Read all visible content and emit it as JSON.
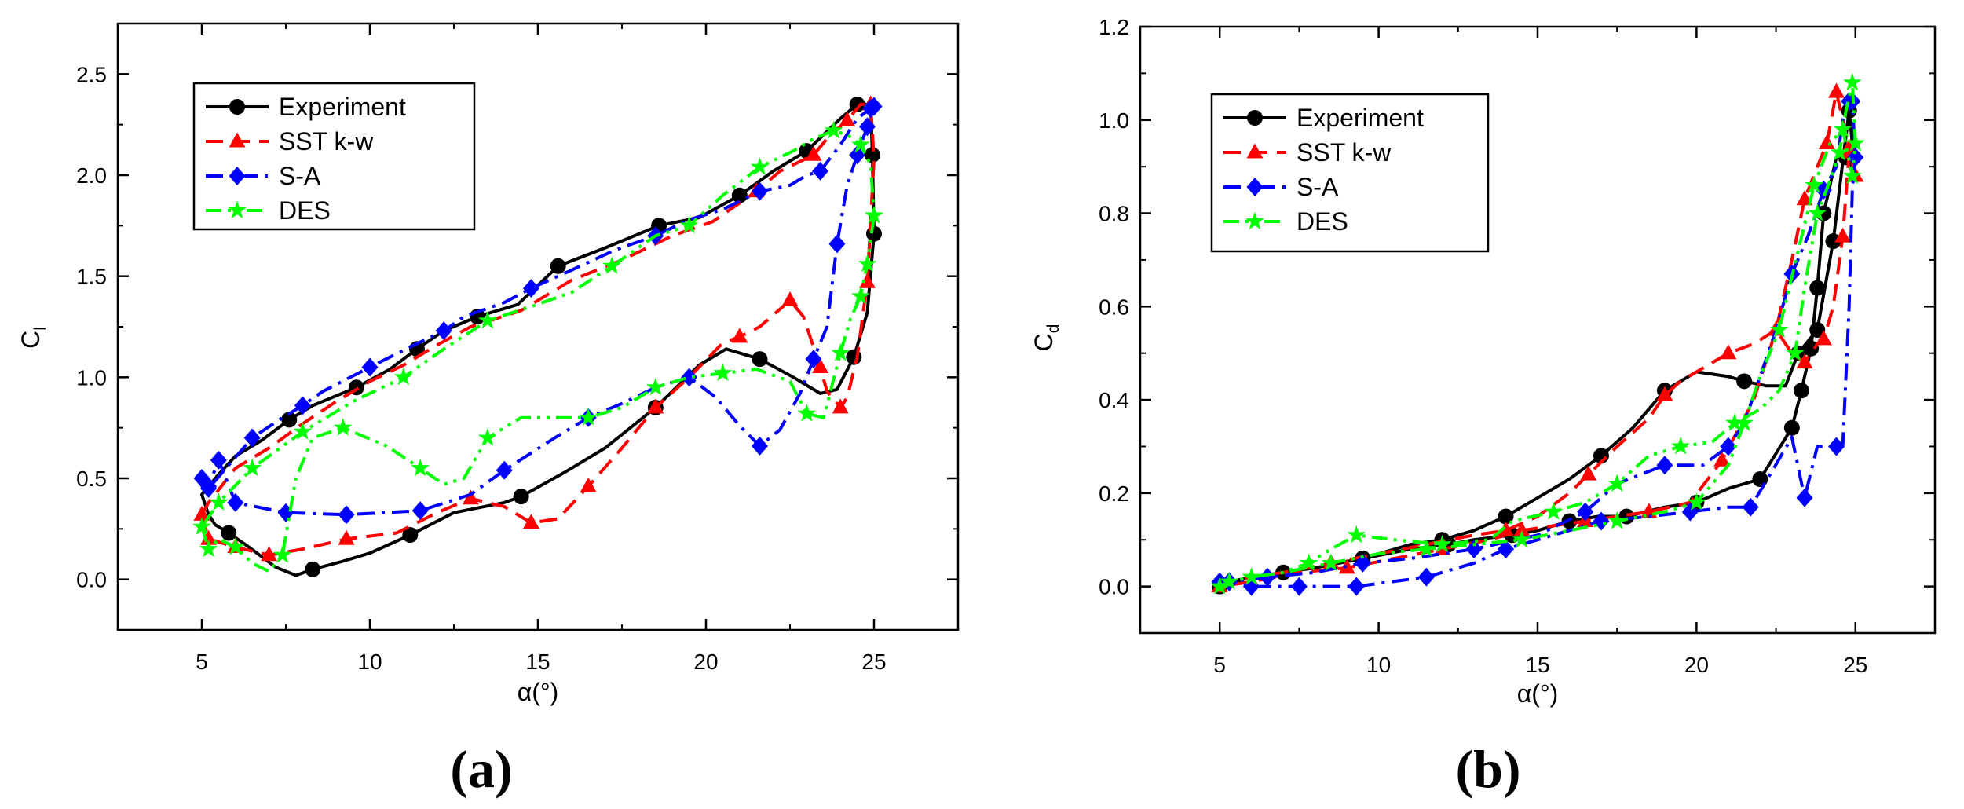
{
  "chart_data": [
    {
      "type": "line",
      "panel_label": "(a)",
      "xlabel": "α(°)",
      "ylabel": "C",
      "ylabel_sub": "l",
      "xlim": [
        2.5,
        27.5
      ],
      "ylim": [
        -0.25,
        2.75
      ],
      "xticks": [
        "5",
        "10",
        "15",
        "20",
        "25"
      ],
      "yticks": [
        "0.0",
        "0.5",
        "1.0",
        "1.5",
        "2.0",
        "2.5"
      ],
      "legend_position": "top-left",
      "series": [
        {
          "name": "Experiment",
          "color": "#000000",
          "dash": "solid",
          "marker": "circle",
          "x": [
            5.0,
            5.2,
            5.4,
            5.8,
            6.4,
            7.2,
            7.8,
            8.3,
            9.2,
            10.0,
            11.2,
            12.5,
            14.0,
            14.5,
            15.8,
            17.0,
            18.5,
            19.8,
            20.6,
            21.6,
            22.6,
            23.4,
            23.9,
            24.4,
            24.8,
            25.0,
            24.95,
            24.9,
            24.5,
            24.0,
            23.5,
            23.0,
            22.0,
            21.0,
            19.8,
            18.6,
            17.0,
            15.6,
            14.4,
            13.2,
            12.2,
            11.4,
            10.6,
            9.6,
            8.3,
            7.6,
            6.8,
            6.0,
            5.5
          ],
          "y": [
            0.42,
            0.32,
            0.27,
            0.23,
            0.16,
            0.06,
            0.02,
            0.05,
            0.09,
            0.13,
            0.22,
            0.33,
            0.38,
            0.41,
            0.53,
            0.65,
            0.85,
            1.06,
            1.14,
            1.09,
            1.0,
            0.92,
            0.94,
            1.1,
            1.32,
            1.71,
            2.1,
            2.35,
            2.35,
            2.28,
            2.2,
            2.12,
            2.02,
            1.9,
            1.79,
            1.75,
            1.64,
            1.55,
            1.36,
            1.3,
            1.23,
            1.14,
            1.04,
            0.95,
            0.86,
            0.79,
            0.69,
            0.61,
            0.52
          ],
          "marker_idx": [
            3,
            7,
            10,
            13,
            16,
            19,
            23,
            25,
            26,
            28,
            31,
            33,
            35,
            37,
            39,
            41,
            43,
            45
          ]
        },
        {
          "name": "SST k-w",
          "color": "#ff0000",
          "dash": "dash",
          "marker": "triangle",
          "x": [
            5.0,
            5.2,
            6.0,
            7.0,
            8.0,
            9.3,
            10.8,
            12.0,
            13.0,
            14.0,
            14.8,
            15.6,
            16.5,
            17.5,
            18.5,
            19.5,
            20.5,
            21.0,
            21.6,
            22.5,
            22.9,
            23.4,
            23.6,
            24.0,
            24.2,
            24.5,
            24.8,
            25.0,
            24.9,
            24.6,
            24.2,
            23.7,
            23.2,
            22.2,
            21.5,
            20.2,
            19.0,
            17.5,
            16.0,
            14.5,
            13.0,
            12.0,
            11.0,
            10.0,
            9.0,
            8.0,
            7.0,
            6.0,
            5.2
          ],
          "y": [
            0.32,
            0.2,
            0.16,
            0.12,
            0.15,
            0.2,
            0.23,
            0.33,
            0.4,
            0.36,
            0.28,
            0.3,
            0.46,
            0.65,
            0.85,
            1.0,
            1.17,
            1.2,
            1.25,
            1.38,
            1.3,
            1.05,
            0.93,
            0.85,
            0.9,
            1.1,
            1.47,
            2.08,
            2.35,
            2.35,
            2.27,
            2.2,
            2.1,
            2.02,
            1.92,
            1.77,
            1.7,
            1.58,
            1.48,
            1.33,
            1.25,
            1.16,
            1.06,
            0.98,
            0.88,
            0.77,
            0.65,
            0.55,
            0.38
          ],
          "marker_idx": [
            0,
            1,
            2,
            3,
            5,
            8,
            10,
            12,
            14,
            17,
            19,
            21,
            23,
            26,
            28,
            30,
            32,
            34
          ]
        },
        {
          "name": "S-A",
          "color": "#0000ff",
          "dash": "dashdot",
          "marker": "diamond",
          "x": [
            5.0,
            5.2,
            5.5,
            6.0,
            7.5,
            9.3,
            11.5,
            13.0,
            14.0,
            15.5,
            16.5,
            17.5,
            18.5,
            19.5,
            20.3,
            21.0,
            21.6,
            22.2,
            22.8,
            23.2,
            23.6,
            23.9,
            24.2,
            24.5,
            24.8,
            25.0,
            24.9,
            24.5,
            24.0,
            23.4,
            23.0,
            22.5,
            21.6,
            20.5,
            19.5,
            18.5,
            17.3,
            16.0,
            14.8,
            14.0,
            12.8,
            12.2,
            11.2,
            10.0,
            8.6,
            8.0,
            7.4,
            6.5,
            5.2
          ],
          "y": [
            0.5,
            0.46,
            0.59,
            0.38,
            0.33,
            0.32,
            0.34,
            0.42,
            0.54,
            0.7,
            0.8,
            0.87,
            0.95,
            1.0,
            0.9,
            0.76,
            0.66,
            0.74,
            0.92,
            1.09,
            1.25,
            1.66,
            1.95,
            2.1,
            2.24,
            2.34,
            2.33,
            2.28,
            2.15,
            2.02,
            2.0,
            1.95,
            1.92,
            1.83,
            1.78,
            1.7,
            1.63,
            1.53,
            1.44,
            1.37,
            1.3,
            1.23,
            1.15,
            1.05,
            0.93,
            0.86,
            0.8,
            0.7,
            0.45
          ],
          "marker_idx": [
            0,
            1,
            2,
            3,
            4,
            5,
            6,
            8,
            10,
            13,
            16,
            19,
            21,
            23,
            24,
            25,
            26,
            29,
            32,
            35,
            38,
            41,
            43,
            45,
            47,
            48
          ]
        },
        {
          "name": "DES",
          "color": "#00ff00",
          "dash": "dashdotdot",
          "marker": "star",
          "x": [
            5.0,
            5.2,
            5.5,
            6.0,
            6.5,
            7.0,
            7.4,
            7.8,
            8.3,
            9.2,
            10.5,
            11.5,
            12.2,
            12.8,
            13.5,
            14.5,
            15.5,
            16.5,
            17.5,
            18.5,
            19.5,
            20.5,
            21.5,
            22.5,
            23.0,
            23.5,
            24.0,
            24.3,
            24.6,
            24.8,
            25.0,
            24.9,
            24.6,
            24.2,
            23.8,
            23.2,
            22.6,
            21.6,
            20.5,
            19.5,
            18.5,
            17.2,
            16.0,
            14.8,
            13.5,
            12.2,
            11.0,
            9.5,
            8.0,
            6.5,
            5.5
          ],
          "y": [
            0.26,
            0.15,
            0.2,
            0.16,
            0.08,
            0.04,
            0.12,
            0.5,
            0.7,
            0.75,
            0.66,
            0.55,
            0.47,
            0.5,
            0.7,
            0.8,
            0.8,
            0.8,
            0.85,
            0.95,
            1.0,
            1.02,
            1.04,
            0.98,
            0.82,
            0.8,
            1.12,
            1.29,
            1.4,
            1.56,
            1.8,
            2.05,
            2.15,
            2.2,
            2.22,
            2.18,
            2.12,
            2.04,
            1.9,
            1.75,
            1.7,
            1.55,
            1.42,
            1.35,
            1.28,
            1.14,
            1.0,
            0.88,
            0.73,
            0.55,
            0.38
          ],
          "marker_idx": [
            0,
            1,
            3,
            6,
            9,
            11,
            14,
            17,
            19,
            21,
            24,
            26,
            28,
            29,
            30,
            32,
            34,
            37,
            39,
            41,
            44,
            46,
            48,
            49,
            50
          ]
        }
      ]
    },
    {
      "type": "line",
      "panel_label": "(b)",
      "xlabel": "α(°)",
      "ylabel": "C",
      "ylabel_sub": "d",
      "xlim": [
        2.5,
        27.5
      ],
      "ylim": [
        -0.1,
        1.2
      ],
      "xticks": [
        "5",
        "10",
        "15",
        "20",
        "25"
      ],
      "yticks": [
        "0.0",
        "0.2",
        "0.4",
        "0.6",
        "0.8",
        "1.0",
        "1.2"
      ],
      "legend_position": "top-left",
      "series": [
        {
          "name": "Experiment",
          "color": "#000000",
          "dash": "solid",
          "marker": "circle",
          "x": [
            5.0,
            5.3,
            6.0,
            7.0,
            8.0,
            9.5,
            11.0,
            12.0,
            13.0,
            14.0,
            15.0,
            16.0,
            17.0,
            18.0,
            19.0,
            20.0,
            21.0,
            21.5,
            22.2,
            22.8,
            23.2,
            23.8,
            24.3,
            24.6,
            24.8,
            24.9,
            24.9,
            24.7,
            24.4,
            24.0,
            23.8,
            23.6,
            23.3,
            23.0,
            22.0,
            21.0,
            20.0,
            19.0,
            17.8,
            16.9,
            16.0,
            15.0,
            14.2,
            13.0,
            12.2,
            11.0,
            9.5,
            8.0,
            7.0,
            6.0
          ],
          "y": [
            0.0,
            0.01,
            0.02,
            0.03,
            0.04,
            0.06,
            0.09,
            0.1,
            0.12,
            0.15,
            0.19,
            0.23,
            0.28,
            0.34,
            0.42,
            0.46,
            0.45,
            0.44,
            0.43,
            0.43,
            0.5,
            0.55,
            0.74,
            0.91,
            1.02,
            0.95,
            0.9,
            0.92,
            0.92,
            0.8,
            0.64,
            0.51,
            0.42,
            0.34,
            0.23,
            0.21,
            0.18,
            0.17,
            0.15,
            0.15,
            0.14,
            0.12,
            0.11,
            0.1,
            0.09,
            0.08,
            0.06,
            0.04,
            0.03,
            0.02
          ],
          "marker_idx": [
            0,
            5,
            7,
            9,
            12,
            14,
            17,
            20,
            21,
            22,
            24,
            27,
            29,
            30,
            31,
            32,
            33,
            34,
            36,
            38,
            40,
            42,
            44,
            46,
            48
          ]
        },
        {
          "name": "SST k-w",
          "color": "#ff0000",
          "dash": "dash",
          "marker": "triangle",
          "x": [
            5.0,
            5.3,
            6.0,
            7.0,
            8.5,
            10.0,
            11.5,
            13.0,
            14.0,
            15.0,
            16.0,
            16.6,
            17.5,
            18.5,
            19.0,
            19.5,
            20.5,
            21.0,
            21.8,
            22.5,
            23.0,
            23.4,
            23.8,
            24.0,
            24.3,
            24.6,
            24.8,
            25.0,
            24.8,
            24.4,
            24.1,
            23.8,
            23.4,
            23.0,
            22.5,
            21.8,
            20.8,
            19.8,
            18.5,
            17.5,
            16.5,
            15.5,
            14.5,
            13.5,
            12.0,
            10.5,
            9.0,
            7.5,
            6.0
          ],
          "y": [
            0.0,
            0.01,
            0.02,
            0.03,
            0.05,
            0.07,
            0.09,
            0.11,
            0.12,
            0.15,
            0.2,
            0.24,
            0.3,
            0.36,
            0.41,
            0.44,
            0.48,
            0.5,
            0.52,
            0.55,
            0.5,
            0.48,
            0.52,
            0.53,
            0.6,
            0.75,
            0.93,
            0.88,
            0.94,
            1.06,
            0.95,
            0.9,
            0.83,
            0.7,
            0.55,
            0.4,
            0.27,
            0.18,
            0.16,
            0.15,
            0.14,
            0.13,
            0.12,
            0.1,
            0.08,
            0.06,
            0.04,
            0.03,
            0.01
          ],
          "marker_idx": [
            0,
            4,
            8,
            11,
            14,
            17,
            19,
            21,
            23,
            25,
            26,
            27,
            28,
            29,
            30,
            32,
            34,
            36,
            38,
            40,
            42,
            44,
            46,
            48
          ]
        },
        {
          "name": "S-A",
          "color": "#0000ff",
          "dash": "dashdot",
          "marker": "diamond",
          "x": [
            5.0,
            5.3,
            6.0,
            7.5,
            9.3,
            11.5,
            13.0,
            14.0,
            15.5,
            17.0,
            18.5,
            19.8,
            21.0,
            21.7,
            22.4,
            23.0,
            23.4,
            23.8,
            24.1,
            24.4,
            24.6,
            24.8,
            24.9,
            25.0,
            24.9,
            24.8,
            24.6,
            24.4,
            24.0,
            23.5,
            23.0,
            22.5,
            22.0,
            21.5,
            21.0,
            20.2,
            19.0,
            17.5,
            16.5,
            15.0,
            13.0,
            11.0,
            9.5,
            8.0,
            6.5,
            5.3
          ],
          "y": [
            0.01,
            0.01,
            0.0,
            0.0,
            0.0,
            0.02,
            0.05,
            0.08,
            0.11,
            0.14,
            0.15,
            0.16,
            0.17,
            0.17,
            0.25,
            0.32,
            0.19,
            0.3,
            0.3,
            0.3,
            0.3,
            0.6,
            0.85,
            0.92,
            1.04,
            1.04,
            1.0,
            0.9,
            0.85,
            0.75,
            0.67,
            0.55,
            0.45,
            0.35,
            0.3,
            0.26,
            0.26,
            0.22,
            0.16,
            0.11,
            0.08,
            0.06,
            0.05,
            0.03,
            0.02,
            0.01
          ],
          "marker_idx": [
            0,
            1,
            2,
            3,
            4,
            5,
            7,
            9,
            11,
            13,
            16,
            19,
            23,
            24,
            25,
            28,
            30,
            34,
            36,
            38,
            40,
            42,
            44,
            45
          ]
        },
        {
          "name": "DES",
          "color": "#00ff00",
          "dash": "dashdotdot",
          "marker": "star",
          "x": [
            5.0,
            5.3,
            6.0,
            7.0,
            7.8,
            8.5,
            9.3,
            10.5,
            12.0,
            13.5,
            14.2,
            15.5,
            16.5,
            17.5,
            18.5,
            19.5,
            20.5,
            21.2,
            22.0,
            22.6,
            23.1,
            23.4,
            23.8,
            24.2,
            24.5,
            24.7,
            24.9,
            25.0,
            24.9,
            24.6,
            24.2,
            23.7,
            23.2,
            22.6,
            22.0,
            21.5,
            21.0,
            20.0,
            19.0,
            17.5,
            16.0,
            14.5,
            13.0,
            11.5,
            10.0,
            8.5,
            7.0,
            6.0,
            5.3
          ],
          "y": [
            0.0,
            0.01,
            0.02,
            0.03,
            0.05,
            0.08,
            0.11,
            0.1,
            0.09,
            0.1,
            0.14,
            0.16,
            0.18,
            0.22,
            0.28,
            0.3,
            0.31,
            0.35,
            0.38,
            0.42,
            0.5,
            0.64,
            0.8,
            0.87,
            0.93,
            1.02,
            1.08,
            0.95,
            0.88,
            0.98,
            0.95,
            0.86,
            0.72,
            0.55,
            0.45,
            0.35,
            0.26,
            0.18,
            0.16,
            0.14,
            0.12,
            0.1,
            0.09,
            0.08,
            0.07,
            0.05,
            0.03,
            0.02,
            0.01
          ],
          "marker_idx": [
            0,
            1,
            2,
            4,
            6,
            8,
            11,
            13,
            15,
            17,
            20,
            22,
            24,
            26,
            27,
            28,
            29,
            31,
            33,
            35,
            37,
            39,
            41,
            43,
            45,
            47
          ]
        }
      ]
    }
  ]
}
